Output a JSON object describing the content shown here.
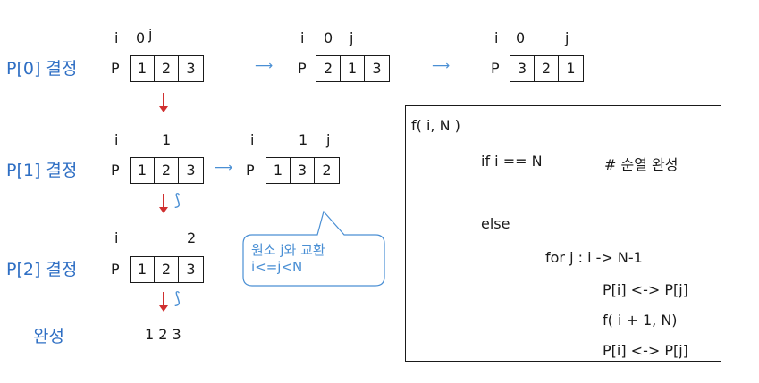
{
  "steps": {
    "s0": "P[0] 결정",
    "s1": "P[1] 결정",
    "s2": "P[2] 결정",
    "done": "완성"
  },
  "p_label": "P",
  "rows": {
    "r0a": {
      "i": "i",
      "zero": "0",
      "j": "j",
      "cells": [
        "1",
        "2",
        "3"
      ]
    },
    "r0b": {
      "i": "i",
      "zero": "0",
      "j": "j",
      "cells": [
        "2",
        "1",
        "3"
      ]
    },
    "r0c": {
      "i": "i",
      "zero": "0",
      "j": "j",
      "cells": [
        "3",
        "2",
        "1"
      ]
    },
    "r1a": {
      "i": "i",
      "one": "1",
      "cells": [
        "1",
        "2",
        "3"
      ]
    },
    "r1b": {
      "i": "i",
      "one": "1",
      "j": "j",
      "cells": [
        "1",
        "3",
        "2"
      ]
    },
    "r2a": {
      "i": "i",
      "two": "2",
      "cells": [
        "1",
        "2",
        "3"
      ]
    }
  },
  "result": "1 2 3",
  "callout": {
    "line1": "원소 j와 교환",
    "line2": "i<=j<N"
  },
  "code": {
    "l1": "f( i, N )",
    "l2": "if i == N",
    "l2c": "# 순열 완성",
    "l3": "else",
    "l4": "for j : i -> N-1",
    "l5": "P[i] <-> P[j]",
    "l6": "f( i + 1, N)",
    "l7": "P[i] <-> P[j]"
  },
  "icons": {
    "right": "arrow-right-icon",
    "down": "arrow-down-icon",
    "back": "curved-return-icon"
  },
  "colors": {
    "step": "#2f6fc4",
    "arrow_h": "#4a8fd4",
    "arrow_v": "#d03030",
    "callout": "#4a8fd4"
  }
}
